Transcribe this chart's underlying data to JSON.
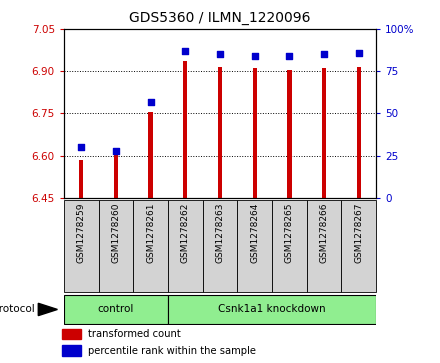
{
  "title": "GDS5360 / ILMN_1220096",
  "samples": [
    "GSM1278259",
    "GSM1278260",
    "GSM1278261",
    "GSM1278262",
    "GSM1278263",
    "GSM1278264",
    "GSM1278265",
    "GSM1278266",
    "GSM1278267"
  ],
  "bar_values": [
    6.585,
    6.625,
    6.755,
    6.935,
    6.915,
    6.91,
    6.905,
    6.91,
    6.915
  ],
  "percentile_values": [
    30,
    28,
    57,
    87,
    85,
    84,
    84,
    85,
    86
  ],
  "ylim_left": [
    6.45,
    7.05
  ],
  "ylim_right": [
    0,
    100
  ],
  "yticks_left": [
    6.45,
    6.6,
    6.75,
    6.9,
    7.05
  ],
  "yticks_right": [
    0,
    25,
    50,
    75,
    100
  ],
  "bar_color": "#cc0000",
  "dot_color": "#0000cc",
  "control_indices": [
    0,
    1,
    2
  ],
  "knockdown_indices": [
    3,
    4,
    5,
    6,
    7,
    8
  ],
  "control_label": "control",
  "knockdown_label": "Csnk1a1 knockdown",
  "protocol_color": "#90ee90",
  "legend_items": [
    {
      "label": "transformed count",
      "color": "#cc0000"
    },
    {
      "label": "percentile rank within the sample",
      "color": "#0000cc"
    }
  ],
  "background_color": "#ffffff",
  "tick_label_color_left": "#cc0000",
  "tick_label_color_right": "#0000cc",
  "xlabel_area_color": "#d3d3d3",
  "bar_bottom": 6.45,
  "bar_width": 0.12
}
